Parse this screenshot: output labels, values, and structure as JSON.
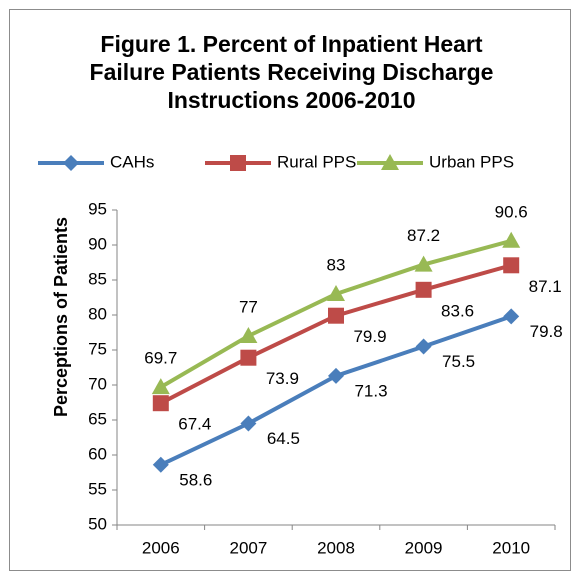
{
  "chart_data": {
    "type": "line",
    "title": "Figure 1. Percent of Inpatient Heart Failure Patients Receiving Discharge Instructions 2006-2010",
    "y_label": "Perceptions of Patients",
    "categories": [
      "2006",
      "2007",
      "2008",
      "2009",
      "2010"
    ],
    "series": [
      {
        "name": "CAHs",
        "color": "#4a7ebb",
        "marker": "diamond",
        "values": [
          58.6,
          64.5,
          71.3,
          75.5,
          79.8
        ]
      },
      {
        "name": "Rural PPS",
        "color": "#be4b48",
        "marker": "square",
        "values": [
          67.4,
          73.9,
          79.9,
          83.6,
          87.1
        ]
      },
      {
        "name": "Urban PPS",
        "color": "#98b954",
        "marker": "triangle",
        "values": [
          69.7,
          77,
          83,
          87.2,
          90.6
        ]
      }
    ],
    "ylim": [
      50,
      95
    ],
    "yticks": [
      50,
      55,
      60,
      65,
      70,
      75,
      80,
      85,
      90,
      95
    ],
    "grid": false,
    "legend": "top"
  }
}
